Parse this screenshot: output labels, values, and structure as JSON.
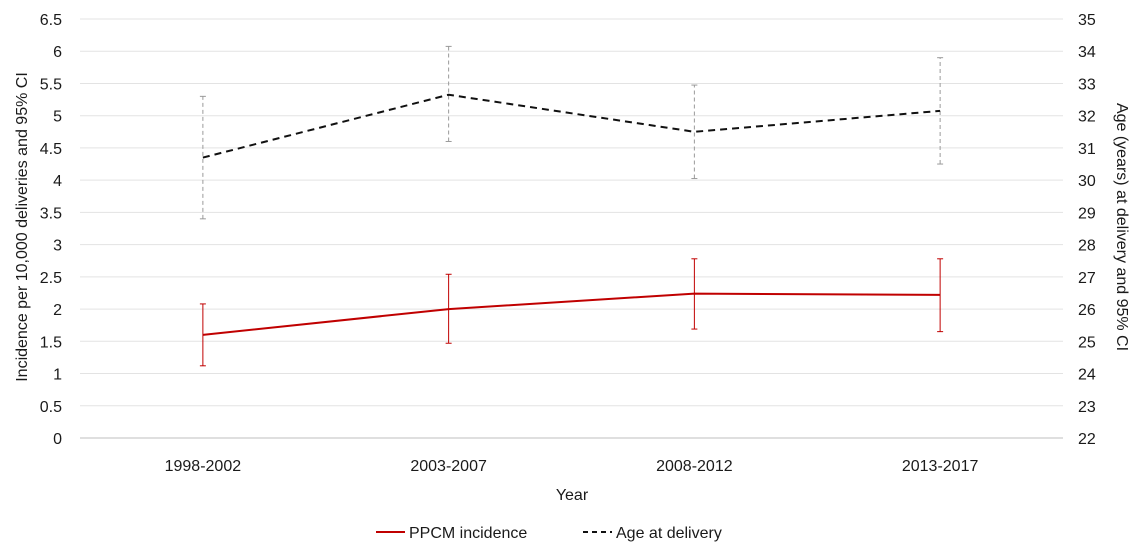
{
  "chart_data": {
    "type": "line",
    "categories": [
      "1998-2002",
      "2003-2007",
      "2008-2012",
      "2013-2017"
    ],
    "xlabel": "Year",
    "ylabel_left": "Incidence per 10,000 deliveries and 95% CI",
    "ylabel_right": "Age (years) at delivery and 95% CI",
    "ylim_left": [
      0,
      6.5
    ],
    "ylim_right": [
      22,
      35
    ],
    "yticks_left": [
      "0",
      "0.5",
      "1",
      "1.5",
      "2",
      "2.5",
      "3",
      "3.5",
      "4",
      "4.5",
      "5",
      "5.5",
      "6",
      "6.5"
    ],
    "yticks_right": [
      "22",
      "23",
      "24",
      "25",
      "26",
      "27",
      "28",
      "29",
      "30",
      "31",
      "32",
      "33",
      "34",
      "35"
    ],
    "grid": true,
    "legend_position": "bottom",
    "series": [
      {
        "name": "PPCM incidence",
        "axis": "left",
        "style": "solid",
        "color": "#c00000",
        "values": [
          1.6,
          2.0,
          2.24,
          2.22
        ],
        "ci_lower": [
          1.12,
          1.47,
          1.69,
          1.65
        ],
        "ci_upper": [
          2.08,
          2.54,
          2.78,
          2.78
        ]
      },
      {
        "name": "Age at delivery",
        "axis": "right",
        "style": "dashed",
        "color": "#111111",
        "values": [
          30.7,
          32.65,
          31.5,
          32.15
        ],
        "ci_lower": [
          28.8,
          31.2,
          30.05,
          30.5
        ],
        "ci_upper": [
          32.6,
          34.15,
          32.95,
          33.8
        ]
      }
    ]
  }
}
